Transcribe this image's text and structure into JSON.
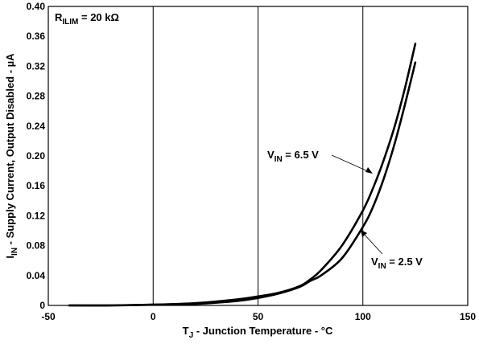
{
  "chart_data": {
    "type": "line",
    "xlabel": {
      "pre": "T",
      "sub": "J",
      "post": " - Junction Temperature - °C"
    },
    "ylabel": {
      "pre": "I",
      "sub": "IN",
      "post": " - Supply Current, Output Disabled - µA"
    },
    "xlim": [
      -50,
      150
    ],
    "ylim": [
      0,
      0.4
    ],
    "x_ticks": [
      "-50",
      "0",
      "50",
      "100",
      "150"
    ],
    "y_ticks": [
      "0",
      "0.04",
      "0.08",
      "0.12",
      "0.16",
      "0.20",
      "0.24",
      "0.28",
      "0.32",
      "0.36",
      "0.40"
    ],
    "grid": true,
    "annotation_box": {
      "pre": "R",
      "sub": "ILIM",
      "post": " = 20 kΩ"
    },
    "series": [
      {
        "name": {
          "pre": "V",
          "sub": "IN",
          "post": " = 6.5 V"
        },
        "x": [
          -40,
          -20,
          0,
          20,
          40,
          50,
          60,
          70,
          75,
          80,
          90,
          100,
          105,
          110,
          115,
          120,
          125
        ],
        "y": [
          0.0,
          0.0,
          0.001,
          0.003,
          0.008,
          0.012,
          0.017,
          0.026,
          0.035,
          0.047,
          0.08,
          0.127,
          0.158,
          0.195,
          0.238,
          0.29,
          0.35
        ]
      },
      {
        "name": {
          "pre": "V",
          "sub": "IN",
          "post": " = 2.5 V"
        },
        "x": [
          -40,
          -20,
          0,
          20,
          40,
          50,
          60,
          70,
          75,
          80,
          90,
          100,
          105,
          110,
          115,
          120,
          125
        ],
        "y": [
          0.0,
          0.0,
          0.001,
          0.002,
          0.006,
          0.01,
          0.016,
          0.025,
          0.033,
          0.04,
          0.063,
          0.105,
          0.133,
          0.17,
          0.215,
          0.268,
          0.325
        ]
      }
    ]
  }
}
